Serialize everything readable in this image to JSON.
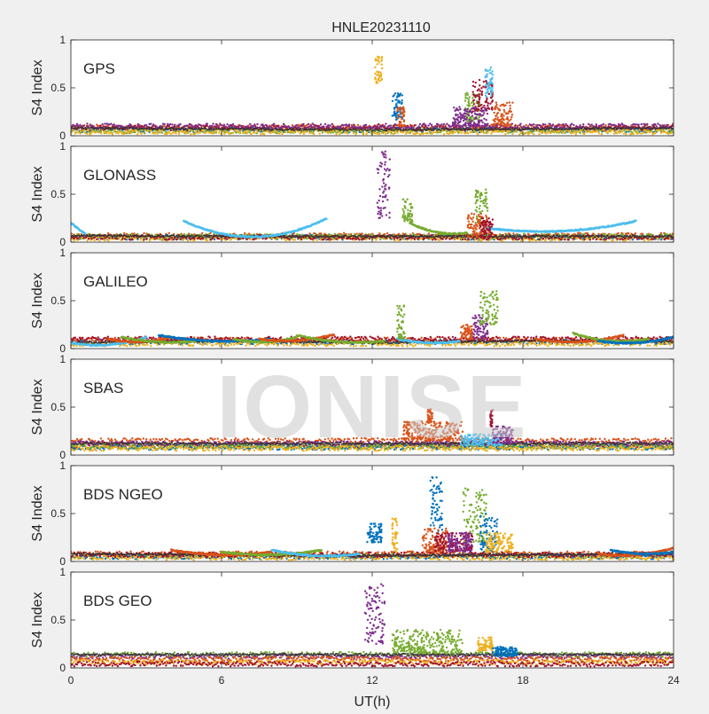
{
  "figure": {
    "title": "HNLE20231110",
    "xlabel": "UT(h)",
    "watermark": "IONISE"
  },
  "chart_data": {
    "type": "scatter",
    "title": "HNLE20231110",
    "xlabel": "UT(h)",
    "ylabel": "S4 Index",
    "xlim": [
      0,
      24
    ],
    "xticks": [
      0,
      6,
      12,
      18,
      24
    ],
    "ylim": [
      0,
      1
    ],
    "yticks": [
      0,
      0.5,
      1
    ],
    "colors": [
      "#0072BD",
      "#D95319",
      "#EDB120",
      "#7E2F8E",
      "#77AC30",
      "#4DBEEE",
      "#A2142F"
    ],
    "panels": [
      {
        "label": "GPS",
        "baseline": [
          [
            0,
            0.08
          ],
          [
            6,
            0.07
          ],
          [
            12,
            0.06
          ],
          [
            18,
            0.07
          ],
          [
            24,
            0.08
          ]
        ],
        "background": [
          {
            "color": "#D95319",
            "y": 0.09
          },
          {
            "color": "#0072BD",
            "y": 0.06
          },
          {
            "color": "#77AC30",
            "y": 0.05
          },
          {
            "color": "#A2142F",
            "y": 0.08
          },
          {
            "color": "#7E2F8E",
            "y": 0.1
          },
          {
            "color": "#EDB120",
            "y": 0.04
          }
        ],
        "events": [
          {
            "color": "#EDB120",
            "x": [
              12.1,
              12.4
            ],
            "y": [
              0.55,
              0.85
            ]
          },
          {
            "color": "#0072BD",
            "x": [
              12.8,
              13.2
            ],
            "y": [
              0.15,
              0.45
            ]
          },
          {
            "color": "#D95319",
            "x": [
              13.0,
              13.3
            ],
            "y": [
              0.1,
              0.3
            ]
          },
          {
            "color": "#77AC30",
            "x": [
              15.7,
              16.3
            ],
            "y": [
              0.15,
              0.45
            ]
          },
          {
            "color": "#A2142F",
            "x": [
              16.0,
              16.8
            ],
            "y": [
              0.25,
              0.6
            ]
          },
          {
            "color": "#4DBEEE",
            "x": [
              16.5,
              16.8
            ],
            "y": [
              0.4,
              0.72
            ]
          },
          {
            "color": "#D95319",
            "x": [
              16.8,
              17.6
            ],
            "y": [
              0.1,
              0.35
            ]
          },
          {
            "color": "#7E2F8E",
            "x": [
              15.2,
              16.6
            ],
            "y": [
              0.1,
              0.3
            ]
          }
        ],
        "arcs": []
      },
      {
        "label": "GLONASS",
        "baseline": [
          [
            0,
            0.07
          ],
          [
            6,
            0.06
          ],
          [
            12,
            0.06
          ],
          [
            18,
            0.06
          ],
          [
            24,
            0.06
          ]
        ],
        "background": [
          {
            "color": "#D95319",
            "y": 0.07
          },
          {
            "color": "#0072BD",
            "y": 0.05
          },
          {
            "color": "#77AC30",
            "y": 0.06
          },
          {
            "color": "#EDB120",
            "y": 0.04
          },
          {
            "color": "#A2142F",
            "y": 0.05
          }
        ],
        "events": [
          {
            "color": "#7E2F8E",
            "x": [
              12.2,
              12.7
            ],
            "y": [
              0.25,
              0.95
            ]
          },
          {
            "color": "#77AC30",
            "x": [
              13.2,
              13.6
            ],
            "y": [
              0.2,
              0.45
            ]
          },
          {
            "color": "#77AC30",
            "x": [
              16.1,
              16.6
            ],
            "y": [
              0.2,
              0.55
            ]
          },
          {
            "color": "#D95319",
            "x": [
              15.8,
              16.6
            ],
            "y": [
              0.05,
              0.3
            ]
          },
          {
            "color": "#A2142F",
            "x": [
              16.3,
              16.8
            ],
            "y": [
              0.05,
              0.25
            ]
          }
        ],
        "arcs": [
          {
            "color": "#4DBEEE",
            "x": [
              0,
              0.6
            ],
            "y0": 0.2,
            "y1": 0.08,
            "sag": 0.0
          },
          {
            "color": "#4DBEEE",
            "x": [
              4.5,
              10.2
            ],
            "y0": 0.22,
            "y1": 0.25,
            "sag": 0.18
          },
          {
            "color": "#4DBEEE",
            "x": [
              16.5,
              22.5
            ],
            "y0": 0.15,
            "y1": 0.22,
            "sag": 0.07
          },
          {
            "color": "#77AC30",
            "x": [
              13.5,
              15.8
            ],
            "y0": 0.2,
            "y1": 0.1,
            "sag": 0.05
          }
        ]
      },
      {
        "label": "GALILEO",
        "baseline": [
          [
            0,
            0.06
          ],
          [
            6,
            0.08
          ],
          [
            12,
            0.06
          ],
          [
            18,
            0.08
          ],
          [
            24,
            0.07
          ]
        ],
        "background": [
          {
            "color": "#0072BD",
            "y": 0.07
          },
          {
            "color": "#D95319",
            "y": 0.09
          },
          {
            "color": "#EDB120",
            "y": 0.05
          },
          {
            "color": "#A2142F",
            "y": 0.1
          }
        ],
        "events": [
          {
            "color": "#77AC30",
            "x": [
              13.0,
              13.3
            ],
            "y": [
              0.1,
              0.45
            ]
          },
          {
            "color": "#D95319",
            "x": [
              15.5,
              16.0
            ],
            "y": [
              0.1,
              0.25
            ]
          },
          {
            "color": "#7E2F8E",
            "x": [
              16.0,
              16.6
            ],
            "y": [
              0.1,
              0.35
            ]
          },
          {
            "color": "#77AC30",
            "x": [
              16.3,
              17.0
            ],
            "y": [
              0.25,
              0.6
            ]
          }
        ],
        "arcs": [
          {
            "color": "#4DBEEE",
            "x": [
              0,
              3
            ],
            "y0": 0.06,
            "y1": 0.12,
            "sag": 0.05
          },
          {
            "color": "#D95319",
            "x": [
              1.5,
              4
            ],
            "y0": 0.1,
            "y1": 0.12,
            "sag": 0.04
          },
          {
            "color": "#77AC30",
            "x": [
              2,
              5
            ],
            "y0": 0.12,
            "y1": 0.08,
            "sag": 0.03
          },
          {
            "color": "#0072BD",
            "x": [
              3.5,
              8
            ],
            "y0": 0.14,
            "y1": 0.1,
            "sag": 0.04
          },
          {
            "color": "#77AC30",
            "x": [
              6.5,
              9
            ],
            "y0": 0.1,
            "y1": 0.12,
            "sag": 0.04
          },
          {
            "color": "#D95319",
            "x": [
              7.5,
              10.5
            ],
            "y0": 0.1,
            "y1": 0.15,
            "sag": 0.04
          },
          {
            "color": "#77AC30",
            "x": [
              9,
              12.5
            ],
            "y0": 0.14,
            "y1": 0.08,
            "sag": 0.04
          },
          {
            "color": "#D95319",
            "x": [
              18.5,
              22
            ],
            "y0": 0.1,
            "y1": 0.14,
            "sag": 0.05
          },
          {
            "color": "#77AC30",
            "x": [
              20,
              23
            ],
            "y0": 0.16,
            "y1": 0.1,
            "sag": 0.05
          },
          {
            "color": "#0072BD",
            "x": [
              21,
              24
            ],
            "y0": 0.08,
            "y1": 0.12,
            "sag": 0.04
          },
          {
            "color": "#4DBEEE",
            "x": [
              13,
              15.5
            ],
            "y0": 0.1,
            "y1": 0.08,
            "sag": 0.03
          }
        ]
      },
      {
        "label": "SBAS",
        "baseline": [
          [
            0,
            0.12
          ],
          [
            6,
            0.12
          ],
          [
            12,
            0.12
          ],
          [
            18,
            0.12
          ],
          [
            24,
            0.12
          ]
        ],
        "background": [
          {
            "color": "#D95319",
            "y": 0.15
          },
          {
            "color": "#A2142F",
            "y": 0.1
          },
          {
            "color": "#0072BD",
            "y": 0.08
          },
          {
            "color": "#7E2F8E",
            "y": 0.12
          },
          {
            "color": "#77AC30",
            "y": 0.09
          },
          {
            "color": "#EDB120",
            "y": 0.07
          }
        ],
        "events": [
          {
            "color": "#D95319",
            "x": [
              13.2,
              15.6
            ],
            "y": [
              0.15,
              0.35
            ]
          },
          {
            "color": "#D95319",
            "x": [
              14.2,
              14.4
            ],
            "y": [
              0.35,
              0.5
            ]
          },
          {
            "color": "#4DBEEE",
            "x": [
              15.5,
              17.2
            ],
            "y": [
              0.1,
              0.22
            ]
          },
          {
            "color": "#7E2F8E",
            "x": [
              16.8,
              17.6
            ],
            "y": [
              0.12,
              0.3
            ]
          },
          {
            "color": "#A2142F",
            "x": [
              16.7,
              16.8
            ],
            "y": [
              0.3,
              0.48
            ]
          }
        ],
        "arcs": []
      },
      {
        "label": "BDS NGEO",
        "baseline": [
          [
            0,
            0.08
          ],
          [
            6,
            0.07
          ],
          [
            12,
            0.06
          ],
          [
            18,
            0.07
          ],
          [
            24,
            0.08
          ]
        ],
        "background": [
          {
            "color": "#77AC30",
            "y": 0.06
          },
          {
            "color": "#D95319",
            "y": 0.08
          },
          {
            "color": "#0072BD",
            "y": 0.05
          },
          {
            "color": "#EDB120",
            "y": 0.04
          },
          {
            "color": "#A2142F",
            "y": 0.07
          }
        ],
        "events": [
          {
            "color": "#0072BD",
            "x": [
              11.8,
              12.4
            ],
            "y": [
              0.2,
              0.4
            ]
          },
          {
            "color": "#EDB120",
            "x": [
              12.8,
              13.0
            ],
            "y": [
              0.1,
              0.45
            ]
          },
          {
            "color": "#0072BD",
            "x": [
              14.3,
              14.8
            ],
            "y": [
              0.3,
              0.88
            ]
          },
          {
            "color": "#D95319",
            "x": [
              14.0,
              15.0
            ],
            "y": [
              0.1,
              0.35
            ]
          },
          {
            "color": "#A2142F",
            "x": [
              14.5,
              16.0
            ],
            "y": [
              0.1,
              0.3
            ]
          },
          {
            "color": "#77AC30",
            "x": [
              15.6,
              16.6
            ],
            "y": [
              0.2,
              0.78
            ]
          },
          {
            "color": "#0072BD",
            "x": [
              16.3,
              17.0
            ],
            "y": [
              0.1,
              0.5
            ]
          },
          {
            "color": "#7E2F8E",
            "x": [
              15.0,
              16.0
            ],
            "y": [
              0.1,
              0.3
            ]
          },
          {
            "color": "#EDB120",
            "x": [
              16.5,
              17.6
            ],
            "y": [
              0.1,
              0.3
            ]
          }
        ],
        "arcs": [
          {
            "color": "#D95319",
            "x": [
              4,
              8
            ],
            "y0": 0.12,
            "y1": 0.1,
            "sag": 0.04
          },
          {
            "color": "#77AC30",
            "x": [
              6,
              10
            ],
            "y0": 0.1,
            "y1": 0.12,
            "sag": 0.04
          },
          {
            "color": "#4DBEEE",
            "x": [
              8,
              11.5
            ],
            "y0": 0.12,
            "y1": 0.08,
            "sag": 0.04
          },
          {
            "color": "#D95319",
            "x": [
              21,
              24
            ],
            "y0": 0.08,
            "y1": 0.14,
            "sag": 0.04
          },
          {
            "color": "#0072BD",
            "x": [
              21.5,
              24
            ],
            "y0": 0.12,
            "y1": 0.1,
            "sag": 0.03
          }
        ]
      },
      {
        "label": "BDS GEO",
        "baseline": [
          [
            0,
            0.14
          ],
          [
            6,
            0.14
          ],
          [
            12,
            0.14
          ],
          [
            18,
            0.14
          ],
          [
            24,
            0.14
          ]
        ],
        "background": [
          {
            "color": "#77AC30",
            "y": 0.14
          },
          {
            "color": "#7E2F8E",
            "y": 0.12
          },
          {
            "color": "#D95319",
            "y": 0.09
          },
          {
            "color": "#EDB120",
            "y": 0.06
          },
          {
            "color": "#A2142F",
            "y": 0.04
          }
        ],
        "events": [
          {
            "color": "#7E2F8E",
            "x": [
              11.7,
              12.5
            ],
            "y": [
              0.25,
              0.88
            ]
          },
          {
            "color": "#77AC30",
            "x": [
              12.8,
              15.6
            ],
            "y": [
              0.15,
              0.4
            ]
          },
          {
            "color": "#EDB120",
            "x": [
              16.2,
              16.8
            ],
            "y": [
              0.18,
              0.32
            ]
          },
          {
            "color": "#0072BD",
            "x": [
              16.8,
              17.8
            ],
            "y": [
              0.12,
              0.22
            ]
          }
        ],
        "arcs": []
      }
    ]
  }
}
